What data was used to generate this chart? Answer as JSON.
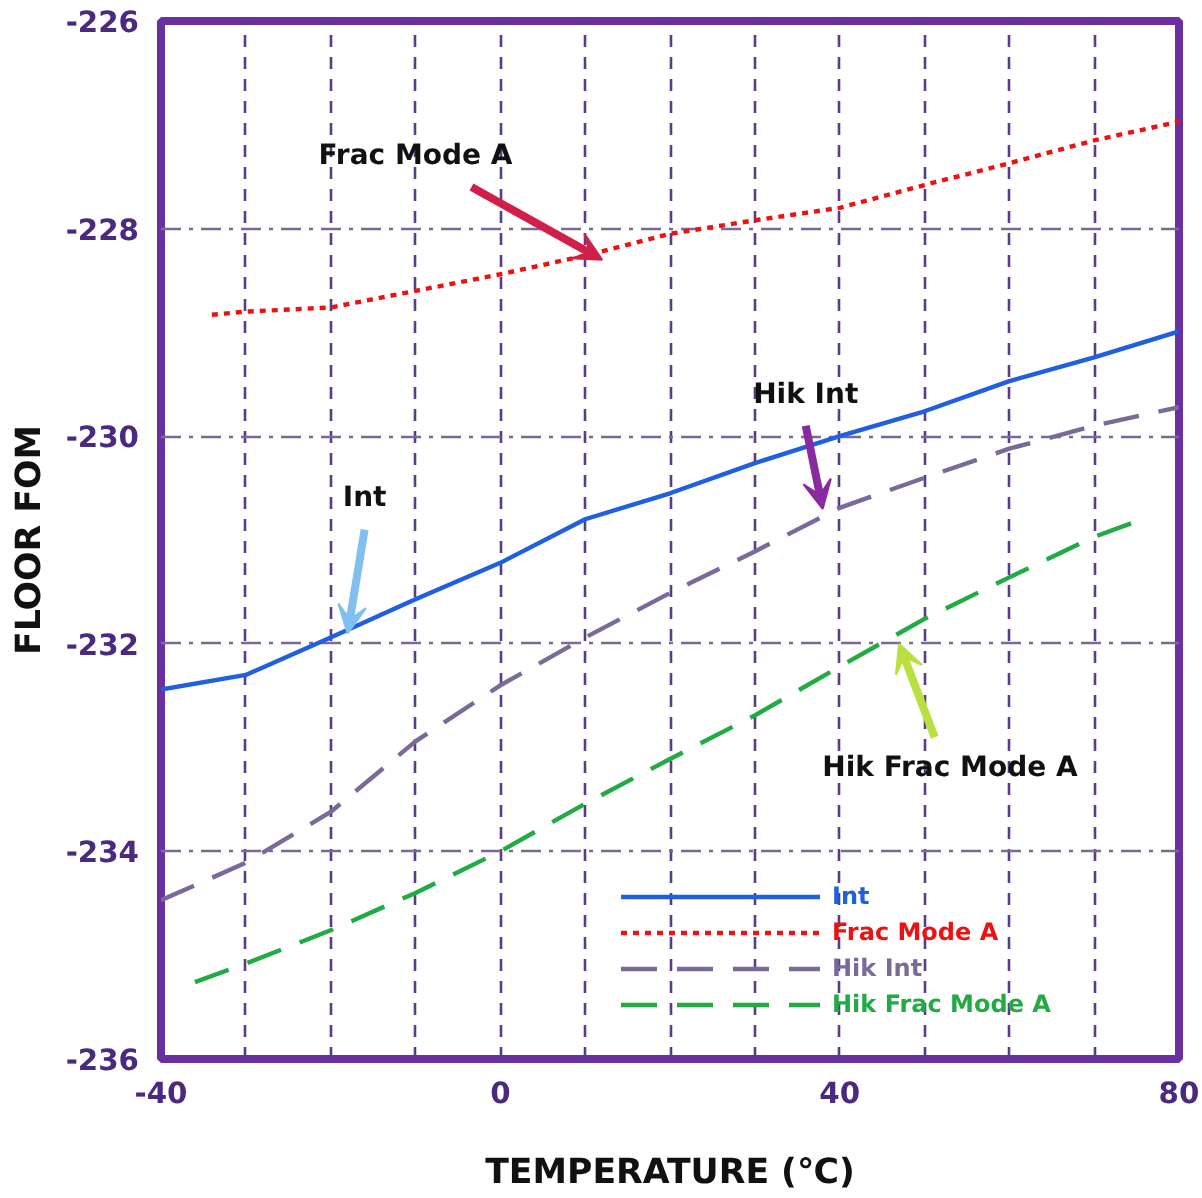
{
  "chart_data": {
    "type": "line",
    "xlabel": "TEMPERATURE (℃)",
    "ylabel": "FLOOR FOM",
    "xlim": [
      -40,
      80
    ],
    "ylim": [
      -236,
      -226
    ],
    "xticks": [
      -40,
      {
        "value": -30,
        "label": null
      },
      {
        "value": -20,
        "label": null
      },
      {
        "value": -10,
        "label": null
      },
      0,
      {
        "value": 10,
        "label": null
      },
      {
        "value": 20,
        "label": null
      },
      {
        "value": 30,
        "label": null
      },
      40,
      {
        "value": 50,
        "label": null
      },
      {
        "value": 60,
        "label": null
      },
      {
        "value": 70,
        "label": null
      },
      80
    ],
    "yticks": [
      -236,
      -234,
      -232,
      -230,
      -228,
      -226
    ],
    "grid": true,
    "legend": "bottom right",
    "marker": "none",
    "series": [
      {
        "name": "Int",
        "color": "#1f5fe0",
        "line_style": "solid",
        "x": [
          -40,
          -30,
          -20,
          -10,
          0,
          10,
          20,
          30,
          40,
          50,
          60,
          70,
          80
        ],
        "values": [
          -232.44,
          -232.3,
          -231.94,
          -231.57,
          -231.22,
          -230.8,
          -230.55,
          -230.26,
          -230.0,
          -229.76,
          -229.47,
          -229.24,
          -228.99
        ]
      },
      {
        "name": "Frac Mode A",
        "color": "#ee1111",
        "line_style": "dotted",
        "x": [
          -34,
          -30,
          -20,
          -10,
          0,
          10,
          20,
          30,
          40,
          50,
          60,
          70,
          80
        ],
        "values": [
          -228.83,
          -228.8,
          -228.76,
          -228.6,
          -228.44,
          -228.26,
          -228.05,
          -227.92,
          -227.8,
          -227.58,
          -227.37,
          -227.15,
          -226.97
        ]
      },
      {
        "name": "Hik Int",
        "color": "#7a6a9a",
        "line_style": "dashed",
        "x": [
          -40,
          -30,
          -20,
          -10,
          0,
          10,
          20,
          30,
          40,
          50,
          60,
          70,
          80
        ],
        "values": [
          -234.47,
          -234.11,
          -233.62,
          -232.94,
          -232.4,
          -231.94,
          -231.51,
          -231.11,
          -230.69,
          -230.4,
          -230.12,
          -229.9,
          -229.72
        ]
      },
      {
        "name": "Hik Frac Mode A",
        "color": "#22aa44",
        "line_style": "dashed",
        "x": [
          -36,
          -30,
          -20,
          -10,
          0,
          10,
          20,
          30,
          40,
          50,
          60,
          70,
          75
        ],
        "values": [
          -235.26,
          -235.08,
          -234.76,
          -234.4,
          -234.0,
          -233.54,
          -233.11,
          -232.69,
          -232.22,
          -231.76,
          -231.36,
          -230.97,
          -230.82
        ]
      }
    ],
    "annotations": [
      {
        "text": "Frac Mode A",
        "x": 12,
        "y": -228.3
      },
      {
        "text": "Int",
        "x": -18,
        "y": -231.9
      },
      {
        "text": "Hik Int",
        "x": 38,
        "y": -230.7
      },
      {
        "text": "Hik Frac Mode A",
        "x": 47,
        "y": -232.0
      }
    ]
  }
}
